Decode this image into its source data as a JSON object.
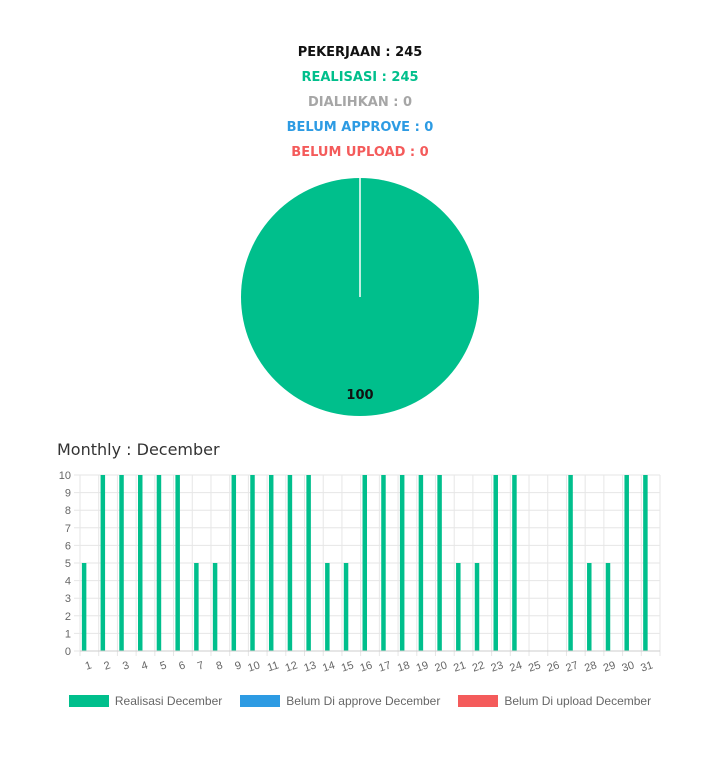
{
  "summary": {
    "pekerjaan": "PEKERJAAN : 245",
    "realisasi": "REALISASI : 245",
    "dialihkan": "DIALIHKAN : 0",
    "belum_approve": "BELUM APPROVE : 0",
    "belum_upload": "BELUM UPLOAD : 0"
  },
  "colors": {
    "black": "#111111",
    "green": "#00bf8c",
    "gray": "#a6a6a6",
    "blue": "#2d9be3",
    "red": "#f45b5b"
  },
  "monthly_title": "Monthly : December",
  "legend": [
    {
      "label": "Realisasi December",
      "color": "#00bf8c"
    },
    {
      "label": "Belum Di approve December",
      "color": "#2d9be3"
    },
    {
      "label": "Belum Di upload December",
      "color": "#f45b5b"
    }
  ],
  "chart_data": [
    {
      "type": "pie",
      "slices": [
        {
          "name": "Realisasi",
          "value": 100,
          "color": "#00bf8c"
        }
      ],
      "labels": [
        "100"
      ]
    },
    {
      "type": "bar",
      "categories": [
        "1",
        "2",
        "3",
        "4",
        "5",
        "6",
        "7",
        "8",
        "9",
        "10",
        "11",
        "12",
        "13",
        "14",
        "15",
        "16",
        "17",
        "18",
        "19",
        "20",
        "21",
        "22",
        "23",
        "24",
        "25",
        "26",
        "27",
        "28",
        "29",
        "30",
        "31"
      ],
      "series": [
        {
          "name": "Realisasi December",
          "color": "#00bf8c",
          "values": [
            5,
            10,
            10,
            10,
            10,
            10,
            5,
            5,
            10,
            10,
            10,
            10,
            10,
            5,
            5,
            10,
            10,
            10,
            10,
            10,
            5,
            5,
            10,
            10,
            0,
            0,
            10,
            5,
            5,
            10,
            10
          ]
        },
        {
          "name": "Belum Di approve December",
          "color": "#2d9be3",
          "values": [
            0,
            0,
            0,
            0,
            0,
            0,
            0,
            0,
            0,
            0,
            0,
            0,
            0,
            0,
            0,
            0,
            0,
            0,
            0,
            0,
            0,
            0,
            0,
            0,
            0,
            0,
            0,
            0,
            0,
            0,
            0
          ]
        },
        {
          "name": "Belum Di upload December",
          "color": "#f45b5b",
          "values": [
            0,
            0,
            0,
            0,
            0,
            0,
            0,
            0,
            0,
            0,
            0,
            0,
            0,
            0,
            0,
            0,
            0,
            0,
            0,
            0,
            0,
            0,
            0,
            0,
            0,
            0,
            0,
            0,
            0,
            0,
            0
          ]
        }
      ],
      "yticks": [
        "0",
        "1",
        "2",
        "3",
        "4",
        "5",
        "6",
        "7",
        "8",
        "9",
        "10"
      ],
      "ylim": [
        0,
        10
      ],
      "grid": true,
      "legend_position": "bottom"
    }
  ]
}
